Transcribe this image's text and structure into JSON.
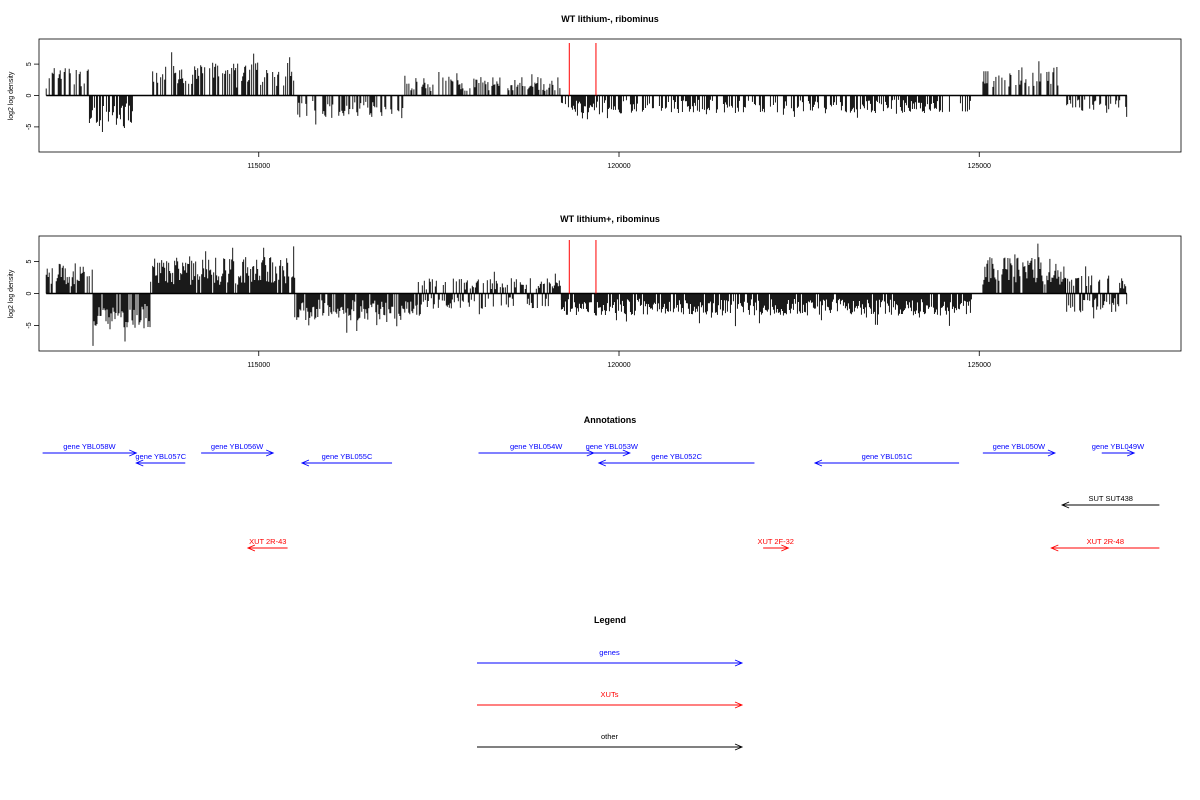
{
  "chart_data": [
    {
      "type": "bar",
      "title": "WT lithium-, ribominus",
      "xlabel": "",
      "ylabel": "log2 log density",
      "xlim": [
        111950,
        127800
      ],
      "ylim": [
        -9,
        9
      ],
      "x_ticks": [
        "115000",
        "120000",
        "125000"
      ],
      "x_tick_values": [
        115000,
        120000,
        125000
      ],
      "y_ticks": [
        "5",
        "0",
        "-5"
      ],
      "y_tick_values": [
        5,
        0,
        -5
      ],
      "data_extent": [
        112050,
        127050
      ],
      "red_markers_x": [
        119310,
        119680
      ],
      "segments": [
        {
          "from": 112050,
          "to": 112650,
          "sign": "up",
          "mean": 3.0
        },
        {
          "from": 112650,
          "to": 113250,
          "sign": "down",
          "mean": -3.5
        },
        {
          "from": 113500,
          "to": 115500,
          "sign": "up",
          "mean": 3.5
        },
        {
          "from": 115500,
          "to": 117000,
          "sign": "down",
          "mean": -2.4
        },
        {
          "from": 117000,
          "to": 119200,
          "sign": "up",
          "mean": 2.0
        },
        {
          "from": 119200,
          "to": 124900,
          "sign": "down",
          "mean": -1.9
        },
        {
          "from": 125050,
          "to": 126200,
          "sign": "up",
          "mean": 3.0
        },
        {
          "from": 126200,
          "to": 127050,
          "sign": "down",
          "mean": -1.6
        }
      ]
    },
    {
      "type": "bar",
      "title": "WT lithium+, ribominus",
      "xlabel": "",
      "ylabel": "log2 log density",
      "xlim": [
        111950,
        127800
      ],
      "ylim": [
        -9,
        9
      ],
      "x_ticks": [
        "115000",
        "120000",
        "125000"
      ],
      "x_tick_values": [
        115000,
        120000,
        125000
      ],
      "y_ticks": [
        "5",
        "0",
        "-5"
      ],
      "y_tick_values": [
        5,
        0,
        -5
      ],
      "data_extent": [
        112050,
        127050
      ],
      "red_markers_x": [
        119310,
        119680
      ],
      "segments": [
        {
          "from": 112050,
          "to": 112700,
          "sign": "up",
          "mean": 3.2
        },
        {
          "from": 112700,
          "to": 113500,
          "sign": "down",
          "mean": -3.8
        },
        {
          "from": 113500,
          "to": 115500,
          "sign": "up",
          "mean": 3.8
        },
        {
          "from": 115500,
          "to": 117200,
          "sign": "down",
          "mean": -2.8
        },
        {
          "from": 117200,
          "to": 119200,
          "sign": "both",
          "mean": 1.6
        },
        {
          "from": 119200,
          "to": 124900,
          "sign": "down",
          "mean": -2.3
        },
        {
          "from": 125050,
          "to": 126200,
          "sign": "up",
          "mean": 3.8
        },
        {
          "from": 126200,
          "to": 127050,
          "sign": "both",
          "mean": 2.0
        }
      ]
    }
  ],
  "annotations": {
    "title": "Annotations",
    "genes": [
      {
        "label": "gene YBL058W",
        "start": 112000,
        "end": 113300,
        "dir": "right",
        "row": 0
      },
      {
        "label": "gene YBL057C",
        "start": 113300,
        "end": 113980,
        "dir": "left",
        "row": 1
      },
      {
        "label": "gene YBL056W",
        "start": 114200,
        "end": 115200,
        "dir": "right",
        "row": 0
      },
      {
        "label": "gene YBL055C",
        "start": 115600,
        "end": 116850,
        "dir": "left",
        "row": 1
      },
      {
        "label": "gene YBL054W",
        "start": 118050,
        "end": 119650,
        "dir": "right",
        "row": 0
      },
      {
        "label": "gene YBL053W",
        "start": 119650,
        "end": 120150,
        "dir": "right",
        "row": 0
      },
      {
        "label": "gene YBL052C",
        "start": 119720,
        "end": 121880,
        "dir": "left",
        "row": 1
      },
      {
        "label": "gene YBL051C",
        "start": 122720,
        "end": 124720,
        "dir": "left",
        "row": 1
      },
      {
        "label": "gene YBL050W",
        "start": 125050,
        "end": 126050,
        "dir": "right",
        "row": 0
      },
      {
        "label": "gene YBL049W",
        "start": 126700,
        "end": 127150,
        "dir": "right",
        "row": 0
      }
    ],
    "xuts": [
      {
        "label": "XUT 2R-43",
        "start": 114850,
        "end": 115400,
        "dir": "left",
        "row": 2
      },
      {
        "label": "XUT 2F-32",
        "start": 122000,
        "end": 122350,
        "dir": "right",
        "row": 2
      },
      {
        "label": "XUT 2R-48",
        "start": 126000,
        "end": 127500,
        "dir": "left",
        "row": 2
      }
    ],
    "others": [
      {
        "label": "SUT SUT438",
        "start": 126150,
        "end": 127500,
        "dir": "left",
        "row": 3
      }
    ]
  },
  "legend": {
    "title": "Legend",
    "items": [
      {
        "label": "genes",
        "color": "#0000ff"
      },
      {
        "label": "XUTs",
        "color": "#ff0000"
      },
      {
        "label": "other",
        "color": "#000000"
      }
    ]
  },
  "colors": {
    "gene": "#0000ff",
    "xut": "#ff0000",
    "other": "#000000",
    "signal": "#000000",
    "marker": "#ff0000"
  }
}
